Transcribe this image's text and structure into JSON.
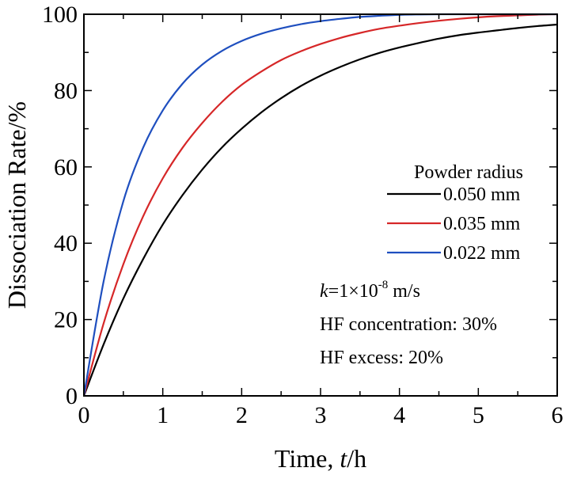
{
  "chart_data": {
    "type": "line",
    "xlabel": "Time, t/h",
    "xlabel_parts": {
      "pre": "Time, ",
      "italic": "t",
      "post": "/h"
    },
    "ylabel": "Dissociation Rate/%",
    "xlim": [
      0,
      6
    ],
    "ylim": [
      0,
      100
    ],
    "x_ticks": [
      0,
      1,
      2,
      3,
      4,
      5,
      6
    ],
    "y_ticks": [
      0,
      20,
      40,
      60,
      80,
      100
    ],
    "x_tick_labels": [
      "0",
      "1",
      "2",
      "3",
      "4",
      "5",
      "6"
    ],
    "y_tick_labels": [
      "0",
      "20",
      "40",
      "60",
      "80",
      "100"
    ],
    "grid": false,
    "legend": {
      "title": "Powder radius",
      "placement": "right-middle"
    },
    "x": [
      0,
      0.25,
      0.5,
      0.75,
      1.0,
      1.25,
      1.5,
      1.75,
      2.0,
      2.25,
      2.5,
      2.75,
      3.0,
      3.25,
      3.5,
      3.75,
      4.0,
      4.25,
      4.5,
      4.75,
      5.0,
      5.25,
      5.5,
      5.75,
      6.0
    ],
    "series": [
      {
        "name": "0.050 mm",
        "color": "#000000",
        "values": [
          0,
          13.5,
          25.5,
          35.8,
          44.9,
          52.6,
          59.3,
          65.1,
          70.0,
          74.3,
          78.0,
          81.2,
          83.9,
          86.2,
          88.2,
          89.9,
          91.3,
          92.5,
          93.6,
          94.5,
          95.2,
          95.8,
          96.4,
          96.9,
          97.3
        ]
      },
      {
        "name": "0.035 mm",
        "color": "#d62728",
        "values": [
          0,
          19.0,
          34.5,
          47.0,
          57.0,
          65.0,
          71.5,
          77.0,
          81.5,
          85.0,
          88.0,
          90.3,
          92.2,
          93.8,
          95.1,
          96.2,
          97.0,
          97.7,
          98.3,
          98.8,
          99.2,
          99.5,
          99.7,
          99.9,
          100
        ]
      },
      {
        "name": "0.022 mm",
        "color": "#1f4fbf",
        "values": [
          0,
          30.0,
          51.0,
          65.0,
          74.8,
          81.8,
          86.8,
          90.4,
          93.0,
          94.9,
          96.3,
          97.4,
          98.2,
          98.8,
          99.3,
          99.6,
          99.85,
          99.95,
          100,
          100,
          100,
          100,
          100,
          100,
          100
        ]
      }
    ],
    "annotations": {
      "k_line": {
        "italic": "k",
        "pre": "=1×10",
        "sup": "-8",
        "post": " m/s"
      },
      "concentration": "HF concentration: 30%",
      "excess": "HF excess: 20%"
    }
  }
}
